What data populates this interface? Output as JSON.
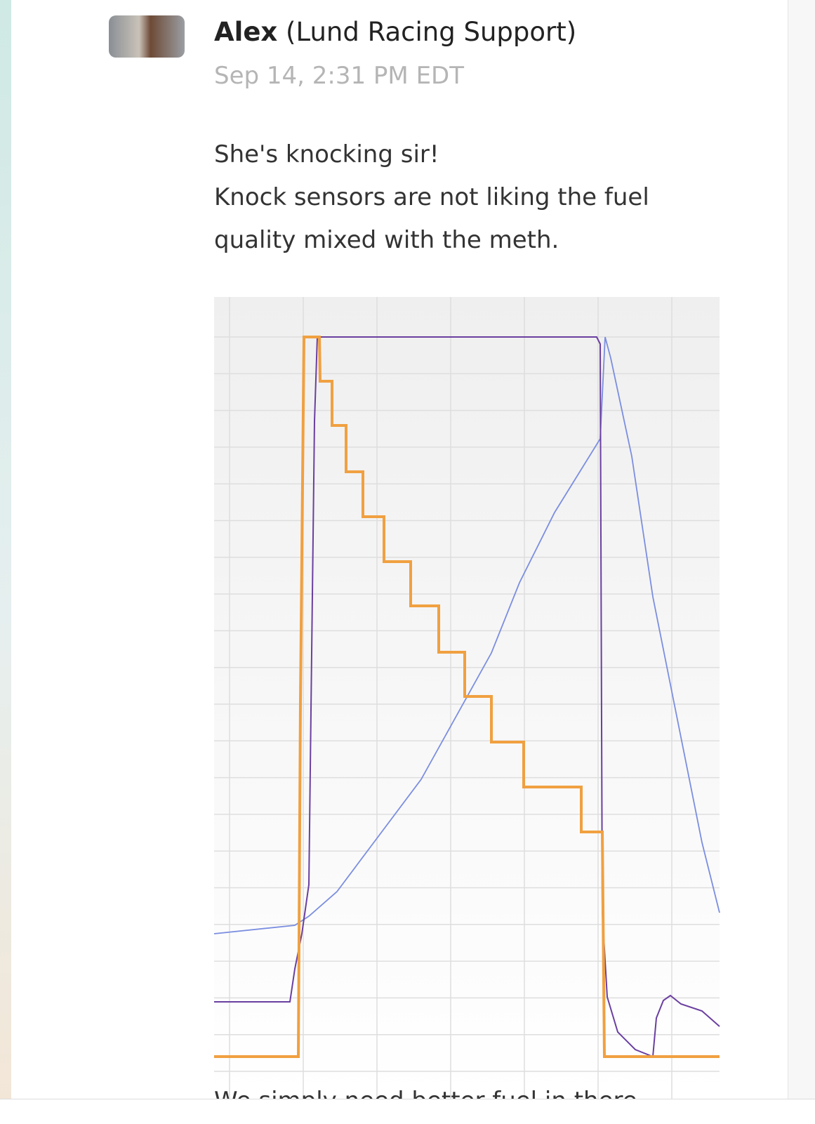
{
  "message": {
    "author": "Alex",
    "role": "(Lund Racing Support)",
    "timestamp": "Sep 14, 2:31 PM EDT",
    "lines": [
      "She's knocking sir!",
      "Knock sensors are not liking the fuel",
      "quality mixed with the meth."
    ],
    "trailing_text": "We simply need better fuel in there"
  }
}
